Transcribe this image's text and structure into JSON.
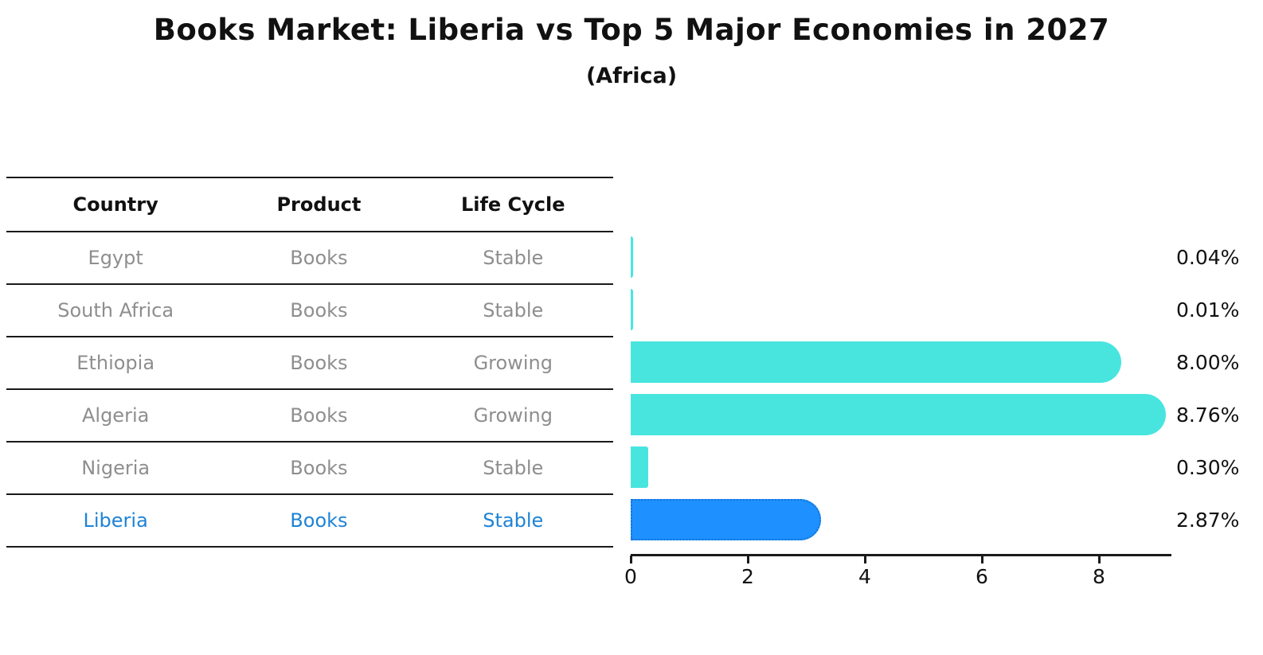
{
  "title": "Books Market: Liberia vs Top 5 Major Economies in 2027",
  "subtitle": "(Africa)",
  "table": {
    "headers": [
      "Country",
      "Product",
      "Life Cycle"
    ],
    "rows": [
      {
        "country": "Egypt",
        "product": "Books",
        "life_cycle": "Stable",
        "highlight": false
      },
      {
        "country": "South Africa",
        "product": "Books",
        "life_cycle": "Stable",
        "highlight": false
      },
      {
        "country": "Ethiopia",
        "product": "Books",
        "life_cycle": "Growing",
        "highlight": false
      },
      {
        "country": "Algeria",
        "product": "Books",
        "life_cycle": "Growing",
        "highlight": false
      },
      {
        "country": "Nigeria",
        "product": "Books",
        "life_cycle": "Stable",
        "highlight": false
      },
      {
        "country": "Liberia",
        "product": "Books",
        "life_cycle": "Stable",
        "highlight": true
      }
    ]
  },
  "chart_data": {
    "type": "bar",
    "orientation": "horizontal",
    "categories": [
      "Egypt",
      "South Africa",
      "Ethiopia",
      "Algeria",
      "Nigeria",
      "Liberia"
    ],
    "values": [
      0.04,
      0.01,
      8.0,
      8.76,
      0.3,
      2.87
    ],
    "value_labels": [
      "0.04%",
      "0.01%",
      "8.00%",
      "8.76%",
      "0.30%",
      "2.87%"
    ],
    "xticks": [
      0,
      2,
      4,
      6,
      8
    ],
    "xlim": [
      0,
      9.2
    ],
    "grid": false,
    "legend_position": "none",
    "highlight_index": 5,
    "colors": {
      "bar": "#48E5DF",
      "highlight_bar": "#1E90FF",
      "highlight_bar_border": "#1273D8",
      "highlight_text": "#1F83D6",
      "table_text": "#8E8E8E",
      "heading_text": "#111111",
      "axis": "#1A1A1A"
    }
  }
}
